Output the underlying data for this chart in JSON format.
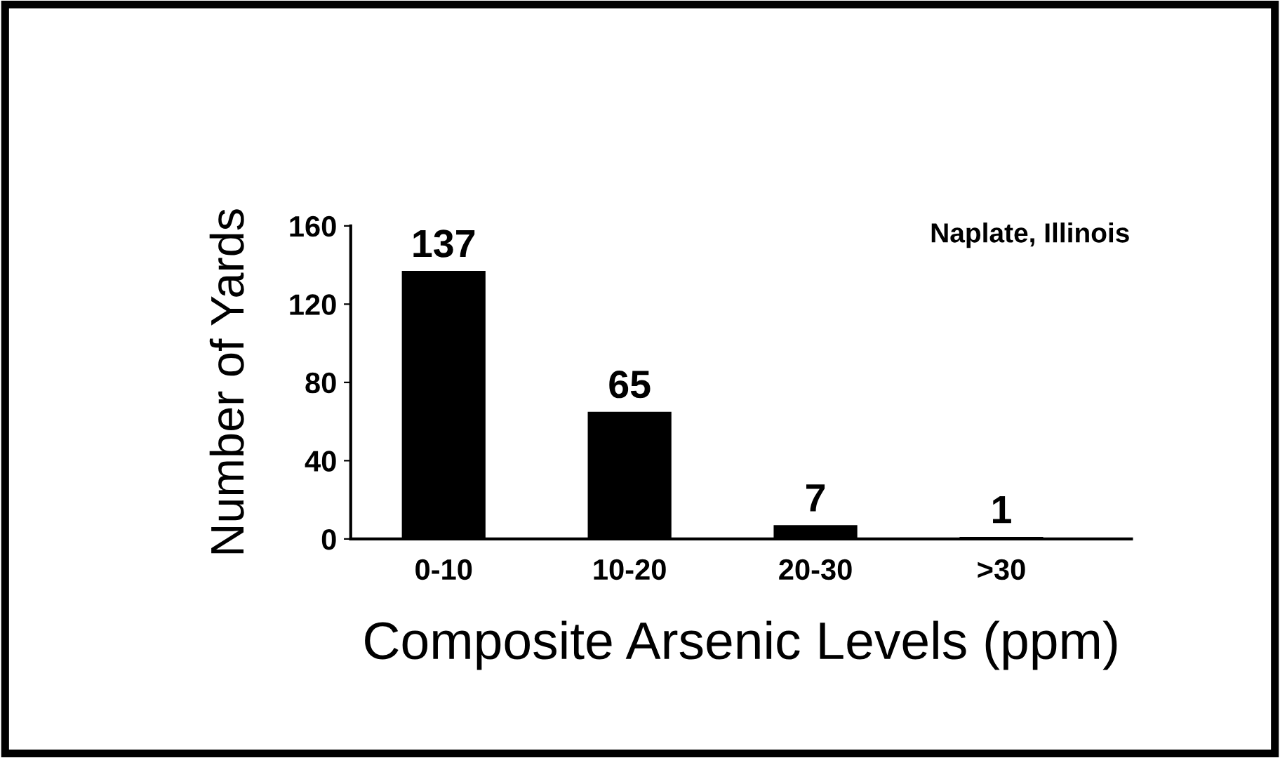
{
  "chart_data": {
    "type": "bar",
    "xlabel": "Composite Arsenic Levels (ppm)",
    "ylabel": "Number of Yards",
    "categories": [
      "0-10",
      "10-20",
      "20-30",
      ">30"
    ],
    "values": [
      137,
      65,
      7,
      1
    ],
    "color": "#000000",
    "ylim": [
      0,
      160
    ],
    "yticks": [
      0,
      40,
      80,
      120,
      160
    ],
    "data_labels": true,
    "grid": false,
    "annotations": [
      "Naplate, Illinois"
    ]
  }
}
